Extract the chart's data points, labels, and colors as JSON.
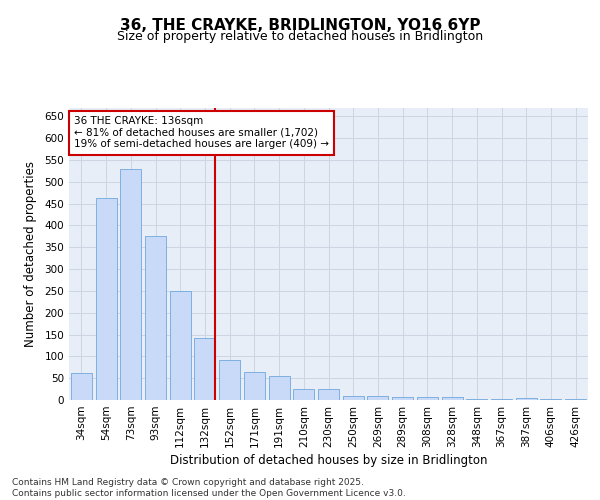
{
  "title1": "36, THE CRAYKE, BRIDLINGTON, YO16 6YP",
  "title2": "Size of property relative to detached houses in Bridlington",
  "xlabel": "Distribution of detached houses by size in Bridlington",
  "ylabel": "Number of detached properties",
  "categories": [
    "34sqm",
    "54sqm",
    "73sqm",
    "93sqm",
    "112sqm",
    "132sqm",
    "152sqm",
    "171sqm",
    "191sqm",
    "210sqm",
    "230sqm",
    "250sqm",
    "269sqm",
    "289sqm",
    "308sqm",
    "328sqm",
    "348sqm",
    "367sqm",
    "387sqm",
    "406sqm",
    "426sqm"
  ],
  "values": [
    62,
    463,
    530,
    375,
    250,
    141,
    91,
    63,
    54,
    25,
    25,
    10,
    10,
    6,
    6,
    8,
    3,
    3,
    5,
    2,
    3
  ],
  "bar_color": "#c9daf8",
  "bar_edge_color": "#6fa8dc",
  "vline_index": 5,
  "vline_color": "#cc0000",
  "annotation_text": "36 THE CRAYKE: 136sqm\n← 81% of detached houses are smaller (1,702)\n19% of semi-detached houses are larger (409) →",
  "annotation_box_color": "#ffffff",
  "annotation_box_edge": "#cc0000",
  "ylim": [
    0,
    670
  ],
  "yticks": [
    0,
    50,
    100,
    150,
    200,
    250,
    300,
    350,
    400,
    450,
    500,
    550,
    600,
    650
  ],
  "grid_color": "#cdd5e3",
  "bg_color": "#e8eef8",
  "footer": "Contains HM Land Registry data © Crown copyright and database right 2025.\nContains public sector information licensed under the Open Government Licence v3.0.",
  "title1_fontsize": 11,
  "title2_fontsize": 9,
  "xlabel_fontsize": 8.5,
  "ylabel_fontsize": 8.5,
  "tick_fontsize": 7.5,
  "annotation_fontsize": 7.5,
  "footer_fontsize": 6.5
}
